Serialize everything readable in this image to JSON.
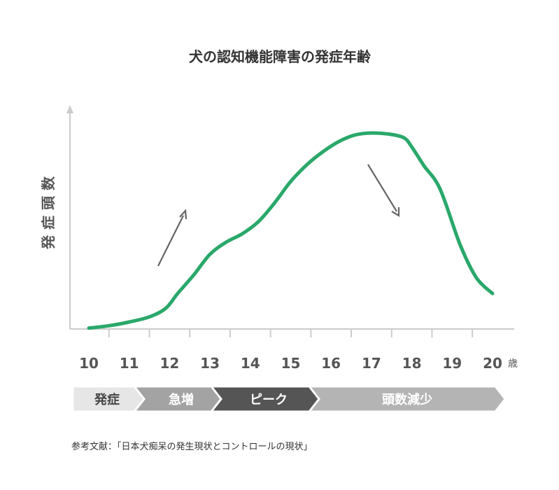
{
  "chart_data": {
    "type": "line",
    "title": "犬の認知機能障害の発症年齢",
    "ylabel": "発症頭数",
    "x_unit": "歳",
    "categories": [
      "10",
      "11",
      "12",
      "13",
      "14",
      "15",
      "16",
      "17",
      "18",
      "19",
      "20"
    ],
    "series": [
      {
        "x": [
          10.0,
          10.5,
          11.0,
          11.5,
          11.9,
          12.2,
          12.6,
          13.0,
          13.4,
          13.8,
          14.2,
          14.6,
          15.0,
          15.4,
          15.8,
          16.2,
          16.6,
          17.0,
          17.4,
          17.8,
          18.0,
          18.3,
          18.7,
          19.2,
          19.6,
          20.0
        ],
        "y": [
          1.0,
          3.5,
          7.5,
          13,
          22,
          38,
          58,
          80,
          93,
          102,
          115,
          135,
          158,
          176,
          190,
          201,
          208,
          210,
          209,
          205,
          195,
          175,
          150,
          90,
          55,
          38
        ]
      }
    ],
    "ylim": [
      0,
      240
    ],
    "xlim": [
      9.5,
      20.5
    ],
    "line_color": "#2aa86a",
    "grid": false,
    "trend_arrows": [
      "up",
      "down"
    ]
  },
  "stages": [
    {
      "label": "発症",
      "color": "#e6e6e6",
      "text_color": "#444444"
    },
    {
      "label": "急増",
      "color": "#a3a3a3",
      "text_color": "#ffffff"
    },
    {
      "label": "ピーク",
      "color": "#555555",
      "text_color": "#ffffff"
    },
    {
      "label": "頭数減少",
      "color": "#b4b4b4",
      "text_color": "#ffffff"
    }
  ],
  "reference": "参考文献：「日本犬痴呆の発生現状とコントロールの現状」"
}
